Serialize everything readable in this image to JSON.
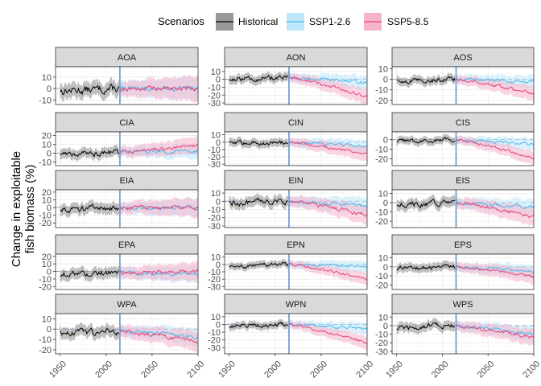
{
  "chart_data": {
    "type": "line",
    "ylabel_lines": [
      "Change in exploitable",
      "fish biomass (%)"
    ],
    "xlabel": "",
    "x_ticks": [
      1950,
      2000,
      2050,
      2100
    ],
    "xlim": [
      1945,
      2100
    ],
    "vline_year": 2015,
    "legend": {
      "title": "Scenarios",
      "position": "top",
      "entries": [
        {
          "name": "Historical",
          "color": "#000000",
          "fill": "#999999"
        },
        {
          "name": "SSP1-2.6",
          "color": "#4db8e8",
          "fill": "#bde6f8"
        },
        {
          "name": "SSP5-8.5",
          "color": "#e8457a",
          "fill": "#f6b3cc"
        }
      ]
    },
    "colors": {
      "vline": "#5b8fc7",
      "zero_line": "#5b8fc7"
    },
    "panels": [
      {
        "label": "AOA",
        "yticks": [
          -10,
          0,
          10
        ],
        "ylim": [
          -14,
          19
        ],
        "hist_end": 0,
        "ssp126_end": 0,
        "ssp585_end": 0,
        "band": 8
      },
      {
        "label": "AON",
        "yticks": [
          -30,
          -20,
          -10,
          0,
          10
        ],
        "ylim": [
          -32,
          16
        ],
        "hist_end": 2,
        "ssp126_end": -4,
        "ssp585_end": -22,
        "band": 7
      },
      {
        "label": "AOS",
        "yticks": [
          -20,
          -10,
          0,
          10
        ],
        "ylim": [
          -24,
          12
        ],
        "hist_end": 0,
        "ssp126_end": -2,
        "ssp585_end": -14,
        "band": 5
      },
      {
        "label": "CIA",
        "yticks": [
          -10,
          0,
          10,
          20
        ],
        "ylim": [
          -14,
          24
        ],
        "hist_end": 1,
        "ssp126_end": 3,
        "ssp585_end": 10,
        "band": 7
      },
      {
        "label": "CIN",
        "yticks": [
          -30,
          -20,
          -10,
          0,
          10
        ],
        "ylim": [
          -32,
          14
        ],
        "hist_end": 0,
        "ssp126_end": -6,
        "ssp585_end": -17,
        "band": 7
      },
      {
        "label": "CIS",
        "yticks": [
          -20,
          -10,
          0
        ],
        "ylim": [
          -27,
          8
        ],
        "hist_end": 0,
        "ssp126_end": -5,
        "ssp585_end": -20,
        "band": 5
      },
      {
        "label": "EIA",
        "yticks": [
          -20,
          -10,
          0,
          10,
          20
        ],
        "ylim": [
          -26,
          23
        ],
        "hist_end": 0,
        "ssp126_end": 0,
        "ssp585_end": -1,
        "band": 9
      },
      {
        "label": "EIN",
        "yticks": [
          -30,
          -20,
          -10,
          0,
          10
        ],
        "ylim": [
          -32,
          14
        ],
        "hist_end": 0,
        "ssp126_end": -6,
        "ssp585_end": -17,
        "band": 8
      },
      {
        "label": "EIS",
        "yticks": [
          -20,
          -10,
          0,
          10
        ],
        "ylim": [
          -27,
          14
        ],
        "hist_end": 0,
        "ssp126_end": -5,
        "ssp585_end": -16,
        "band": 7
      },
      {
        "label": "EPA",
        "yticks": [
          -20,
          -10,
          0,
          10,
          20
        ],
        "ylim": [
          -24,
          23
        ],
        "hist_end": -2,
        "ssp126_end": -4,
        "ssp585_end": 0,
        "band": 9
      },
      {
        "label": "EPN",
        "yticks": [
          -30,
          -20,
          -10,
          0,
          10
        ],
        "ylim": [
          -34,
          14
        ],
        "hist_end": 0,
        "ssp126_end": -3,
        "ssp585_end": -20,
        "band": 6
      },
      {
        "label": "EPS",
        "yticks": [
          -20,
          -10,
          0,
          10
        ],
        "ylim": [
          -25,
          14
        ],
        "hist_end": 0,
        "ssp126_end": -6,
        "ssp585_end": -11,
        "band": 6
      },
      {
        "label": "WPA",
        "yticks": [
          -20,
          -10,
          0,
          10
        ],
        "ylim": [
          -24,
          15
        ],
        "hist_end": -2,
        "ssp126_end": -8,
        "ssp585_end": -12,
        "band": 7
      },
      {
        "label": "WPN",
        "yticks": [
          -30,
          -20,
          -10,
          0,
          10
        ],
        "ylim": [
          -38,
          14
        ],
        "hist_end": 0,
        "ssp126_end": -6,
        "ssp585_end": -24,
        "band": 6
      },
      {
        "label": "WPS",
        "yticks": [
          -30,
          -20,
          -10,
          0,
          10
        ],
        "ylim": [
          -33,
          14
        ],
        "hist_end": 0,
        "ssp126_end": -10,
        "ssp585_end": -14,
        "band": 7
      }
    ]
  }
}
